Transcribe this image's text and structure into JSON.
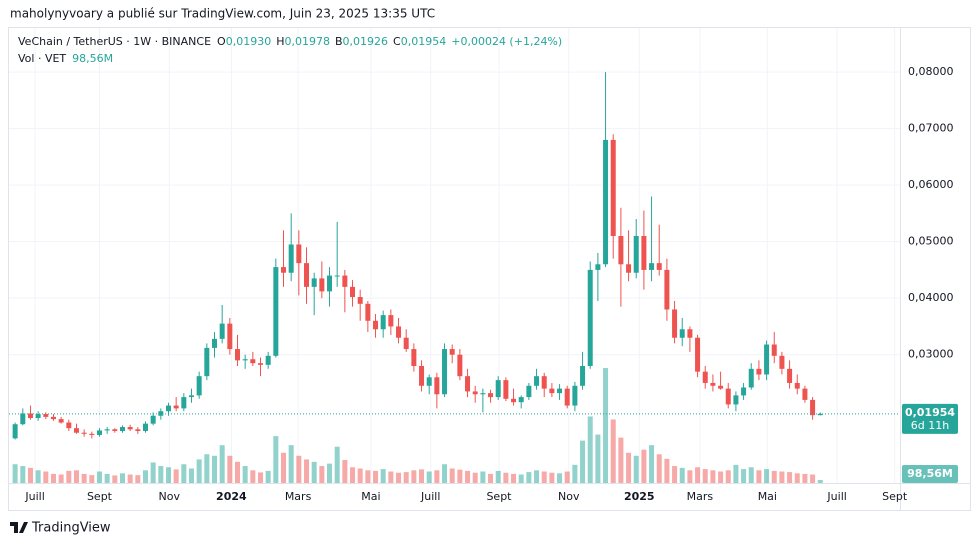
{
  "top_bar": {
    "text": "maholynyvoary a publié sur TradingView.com, Juin 23, 2025 13:35 UTC"
  },
  "footer": {
    "brand": "TradingView"
  },
  "chart_data": {
    "type": "candlestick",
    "symbol": "VeChain / TetherUS · 1W · BINANCE",
    "ohlc_legend": [
      {
        "label": "O",
        "value": "0,01930"
      },
      {
        "label": "H",
        "value": "0,01978"
      },
      {
        "label": "B",
        "value": "0,01926"
      },
      {
        "label": "C",
        "value": "0,01954"
      }
    ],
    "change": "+0,00024 (+1,24%)",
    "volume_legend": {
      "label": "Vol · VET",
      "value": "98,56M"
    },
    "last_price_label": "0,01954",
    "countdown": "6d 11h",
    "last_volume_label": "98,56M",
    "up_color": "#26a69a",
    "down_color": "#ef5350",
    "grid": true,
    "ylim": [
      0.0073,
      0.0878
    ],
    "yticks": [
      {
        "value": 0.08,
        "label": "0,08000"
      },
      {
        "value": 0.07,
        "label": "0,07000"
      },
      {
        "value": 0.06,
        "label": "0,06000"
      },
      {
        "value": 0.05,
        "label": "0,05000"
      },
      {
        "value": 0.04,
        "label": "0,04000"
      },
      {
        "value": 0.03,
        "label": "0,03000"
      }
    ],
    "volume_lim": [
      0,
      4000
    ],
    "xlim": [
      -0.8,
      115.4
    ],
    "xticks": [
      {
        "value": 2.6,
        "label": "Juill"
      },
      {
        "value": 11.0,
        "label": "Sept"
      },
      {
        "value": 20.1,
        "label": "Nov"
      },
      {
        "value": 28.2,
        "label": "2024"
      },
      {
        "value": 36.9,
        "label": "Mars"
      },
      {
        "value": 46.4,
        "label": "Mai"
      },
      {
        "value": 54.2,
        "label": "Juill"
      },
      {
        "value": 63.1,
        "label": "Sept"
      },
      {
        "value": 72.2,
        "label": "Nov"
      },
      {
        "value": 81.4,
        "label": "2025"
      },
      {
        "value": 89.3,
        "label": "Mars"
      },
      {
        "value": 98.1,
        "label": "Mai"
      },
      {
        "value": 107.2,
        "label": "Juill"
      },
      {
        "value": 114.7,
        "label": "Sept"
      }
    ],
    "open": [
      0.0152,
      0.0177,
      0.0196,
      0.0188,
      0.0195,
      0.019,
      0.0186,
      0.018,
      0.017,
      0.0162,
      0.016,
      0.0158,
      0.0166,
      0.0168,
      0.0165,
      0.0172,
      0.0168,
      0.0165,
      0.0178,
      0.0192,
      0.02,
      0.021,
      0.0205,
      0.0225,
      0.0228,
      0.0262,
      0.0312,
      0.0328,
      0.0355,
      0.031,
      0.029,
      0.0292,
      0.0285,
      0.0282,
      0.0298,
      0.0455,
      0.0445,
      0.0495,
      0.0462,
      0.042,
      0.0435,
      0.0412,
      0.044,
      0.044,
      0.042,
      0.0402,
      0.039,
      0.036,
      0.0345,
      0.037,
      0.035,
      0.033,
      0.031,
      0.028,
      0.0245,
      0.026,
      0.023,
      0.031,
      0.03,
      0.0262,
      0.0235,
      0.023,
      0.0232,
      0.0225,
      0.0255,
      0.0222,
      0.0216,
      0.0225,
      0.0245,
      0.0262,
      0.024,
      0.0232,
      0.024,
      0.021,
      0.0245,
      0.028,
      0.045,
      0.046,
      0.068,
      0.051,
      0.046,
      0.0445,
      0.051,
      0.045,
      0.0462,
      0.045,
      0.038,
      0.033,
      0.0345,
      0.033,
      0.027,
      0.025,
      0.0245,
      0.024,
      0.0212,
      0.0228,
      0.0242,
      0.0275,
      0.0265,
      0.0318,
      0.0298,
      0.0275,
      0.025,
      0.024,
      0.022,
      0.0193
    ],
    "high": [
      0.018,
      0.0205,
      0.021,
      0.02,
      0.0198,
      0.0195,
      0.019,
      0.0185,
      0.0178,
      0.0168,
      0.0164,
      0.017,
      0.0172,
      0.017,
      0.0175,
      0.0176,
      0.0172,
      0.0182,
      0.0198,
      0.0205,
      0.0215,
      0.0225,
      0.0232,
      0.024,
      0.027,
      0.032,
      0.034,
      0.0388,
      0.0365,
      0.0335,
      0.03,
      0.0305,
      0.0295,
      0.0305,
      0.047,
      0.052,
      0.055,
      0.052,
      0.049,
      0.0445,
      0.0465,
      0.0455,
      0.0535,
      0.045,
      0.0432,
      0.0415,
      0.0395,
      0.0372,
      0.0378,
      0.038,
      0.0365,
      0.0345,
      0.032,
      0.029,
      0.0265,
      0.0268,
      0.032,
      0.0318,
      0.031,
      0.0275,
      0.0245,
      0.024,
      0.0238,
      0.0262,
      0.026,
      0.024,
      0.0228,
      0.025,
      0.0275,
      0.0268,
      0.025,
      0.0248,
      0.0245,
      0.0252,
      0.0305,
      0.0465,
      0.048,
      0.08,
      0.069,
      0.056,
      0.052,
      0.054,
      0.0555,
      0.058,
      0.053,
      0.047,
      0.0395,
      0.0365,
      0.035,
      0.0335,
      0.028,
      0.0265,
      0.027,
      0.025,
      0.0235,
      0.025,
      0.0285,
      0.029,
      0.0325,
      0.034,
      0.0305,
      0.029,
      0.0265,
      0.0245,
      0.0225,
      0.01978
    ],
    "low": [
      0.015,
      0.0175,
      0.0185,
      0.0183,
      0.0186,
      0.0183,
      0.0178,
      0.0165,
      0.016,
      0.0155,
      0.0152,
      0.0155,
      0.016,
      0.0162,
      0.0162,
      0.0165,
      0.016,
      0.0162,
      0.0175,
      0.0185,
      0.0192,
      0.02,
      0.02,
      0.0215,
      0.0222,
      0.0255,
      0.0295,
      0.032,
      0.03,
      0.028,
      0.0275,
      0.028,
      0.0262,
      0.0275,
      0.0295,
      0.042,
      0.043,
      0.0405,
      0.039,
      0.037,
      0.04,
      0.0385,
      0.042,
      0.0375,
      0.0385,
      0.036,
      0.034,
      0.033,
      0.033,
      0.0335,
      0.032,
      0.0305,
      0.027,
      0.0235,
      0.023,
      0.0205,
      0.0225,
      0.0285,
      0.0255,
      0.0225,
      0.0215,
      0.0198,
      0.0215,
      0.022,
      0.0218,
      0.021,
      0.0205,
      0.022,
      0.0238,
      0.0225,
      0.0225,
      0.022,
      0.0205,
      0.02,
      0.0238,
      0.0275,
      0.0395,
      0.0455,
      0.047,
      0.0385,
      0.043,
      0.0435,
      0.0415,
      0.043,
      0.044,
      0.036,
      0.032,
      0.0315,
      0.0305,
      0.026,
      0.024,
      0.0235,
      0.0238,
      0.0205,
      0.02,
      0.022,
      0.0238,
      0.0255,
      0.0255,
      0.0285,
      0.0265,
      0.024,
      0.023,
      0.0215,
      0.0185,
      0.01926
    ],
    "close": [
      0.0177,
      0.0196,
      0.0188,
      0.0195,
      0.019,
      0.0186,
      0.018,
      0.017,
      0.0162,
      0.016,
      0.0158,
      0.0166,
      0.0168,
      0.0165,
      0.0172,
      0.0168,
      0.0165,
      0.0178,
      0.0192,
      0.02,
      0.021,
      0.0205,
      0.0225,
      0.0228,
      0.0262,
      0.0312,
      0.0328,
      0.0355,
      0.031,
      0.029,
      0.0292,
      0.0285,
      0.0282,
      0.0298,
      0.0455,
      0.0445,
      0.0495,
      0.0462,
      0.042,
      0.0435,
      0.0412,
      0.044,
      0.044,
      0.042,
      0.0402,
      0.039,
      0.036,
      0.0345,
      0.037,
      0.035,
      0.033,
      0.031,
      0.028,
      0.0245,
      0.026,
      0.023,
      0.031,
      0.03,
      0.0262,
      0.0235,
      0.023,
      0.0232,
      0.0225,
      0.0255,
      0.0222,
      0.0216,
      0.0225,
      0.0245,
      0.0262,
      0.024,
      0.0232,
      0.024,
      0.021,
      0.0245,
      0.028,
      0.045,
      0.046,
      0.068,
      0.051,
      0.046,
      0.0445,
      0.051,
      0.045,
      0.0462,
      0.045,
      0.038,
      0.033,
      0.0345,
      0.033,
      0.027,
      0.025,
      0.0245,
      0.024,
      0.0212,
      0.0228,
      0.0242,
      0.0275,
      0.0265,
      0.0318,
      0.0298,
      0.0275,
      0.025,
      0.024,
      0.022,
      0.0193,
      0.01954
    ],
    "volume": [
      620,
      560,
      500,
      420,
      380,
      300,
      280,
      400,
      420,
      300,
      260,
      380,
      300,
      250,
      320,
      280,
      260,
      420,
      680,
      560,
      520,
      450,
      620,
      480,
      780,
      950,
      900,
      1250,
      900,
      700,
      560,
      420,
      350,
      400,
      1550,
      1000,
      1250,
      900,
      780,
      700,
      560,
      640,
      1200,
      760,
      520,
      480,
      420,
      400,
      460,
      380,
      340,
      360,
      420,
      450,
      380,
      420,
      620,
      480,
      440,
      400,
      340,
      380,
      300,
      400,
      340,
      300,
      280,
      360,
      420,
      380,
      340,
      320,
      380,
      600,
      1400,
      2200,
      1600,
      3800,
      2100,
      1500,
      1000,
      900,
      1100,
      1250,
      950,
      800,
      560,
      500,
      420,
      520,
      460,
      420,
      380,
      420,
      600,
      460,
      520,
      420,
      460,
      400,
      380,
      360,
      320,
      300,
      280,
      98.56
    ]
  }
}
